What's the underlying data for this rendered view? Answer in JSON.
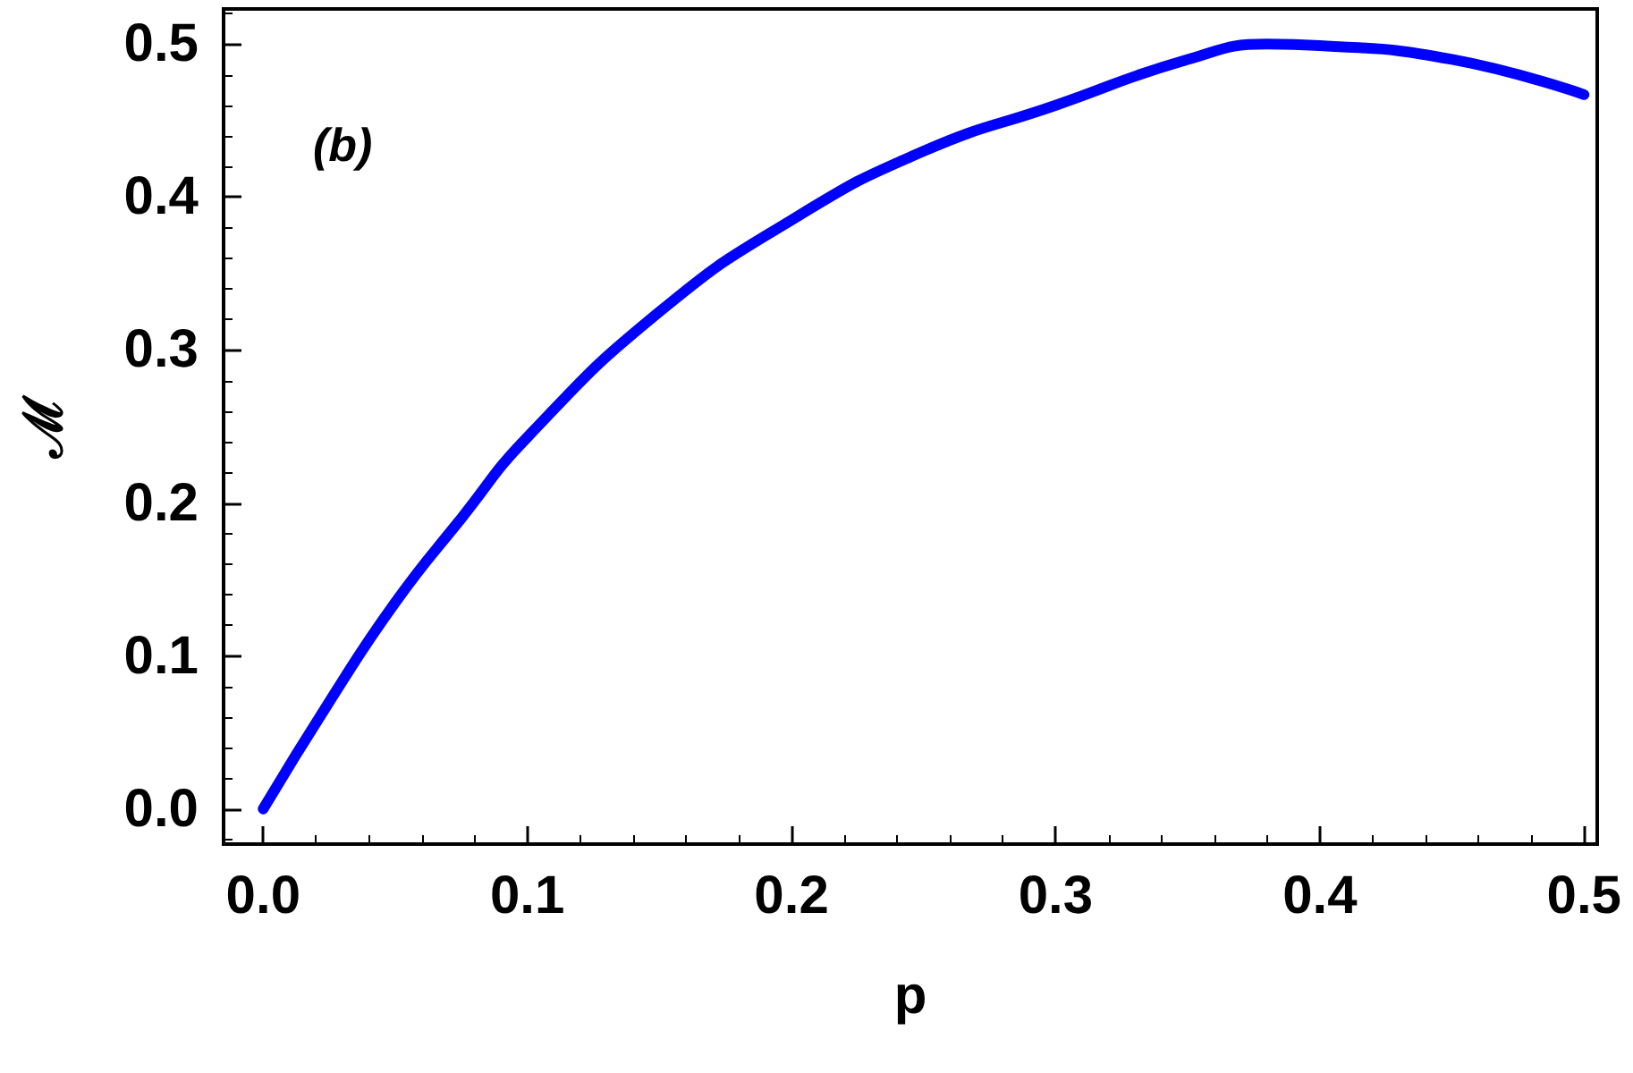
{
  "chart_data": {
    "type": "line",
    "xlabel": "p",
    "ylabel": "ℳ",
    "annotations": [
      "(b)"
    ],
    "x": [
      0,
      0.025,
      0.05,
      0.075,
      0.1,
      0.15,
      0.2,
      0.25,
      0.3,
      0.35,
      0.38,
      0.4,
      0.45,
      0.5
    ],
    "series": [
      {
        "color": "#0000ff",
        "values": [
          0,
          0.07,
          0.135,
          0.19,
          0.243,
          0.325,
          0.385,
          0.43,
          0.46,
          0.49,
          0.5,
          0.499,
          0.49,
          0.467
        ]
      }
    ],
    "xlim": [
      -0.015,
      0.505
    ],
    "ylim": [
      -0.023,
      0.523
    ],
    "xticks": [
      {
        "value": 0,
        "label": "0.0"
      },
      0.1,
      0.2,
      0.3,
      0.4,
      0.5
    ],
    "yticks": [
      {
        "value": 0,
        "label": "0.0"
      },
      0.1,
      0.2,
      0.3,
      0.4,
      0.5
    ],
    "grid": false,
    "line_style": "solid"
  }
}
